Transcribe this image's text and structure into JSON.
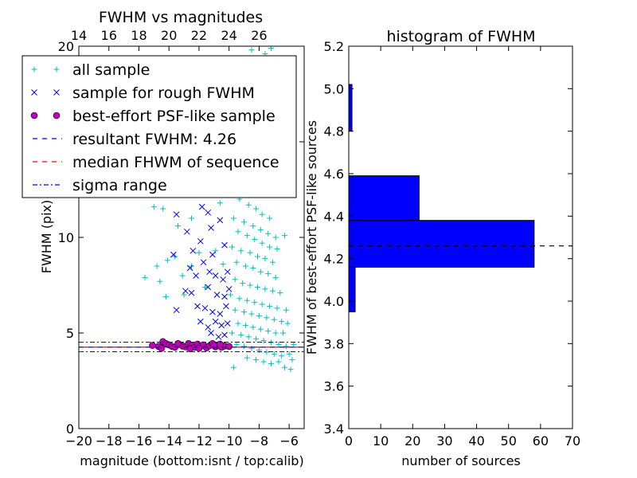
{
  "chart_data": [
    {
      "type": "scatter",
      "title": "FWHM vs magnitudes",
      "xlabel": "magnitude (bottom:isnt / top:calib)",
      "ylabel": "FWHM (pix)",
      "xlim": [
        -20,
        -5
      ],
      "ylim": [
        0,
        20
      ],
      "xticks": [
        -20,
        -18,
        -16,
        -14,
        -12,
        -10,
        -8,
        -6
      ],
      "xtick_labels": [
        "−20",
        "−18",
        "−16",
        "−14",
        "−12",
        "−10",
        "−8",
        "−6"
      ],
      "yticks": [
        0,
        5,
        10,
        15,
        20
      ],
      "ytick_labels": [
        "0",
        "5",
        "10",
        "",
        "20"
      ],
      "top_axis": {
        "ticks": [
          14,
          16,
          18,
          20,
          22,
          24,
          26
        ],
        "tick_labels": [
          "14",
          "16",
          "18",
          "20",
          "22",
          "24",
          "26"
        ],
        "offset_from_bottom": 34
      },
      "grid": false,
      "legend_position": "upper-left",
      "legend": [
        {
          "label": "all sample",
          "marker": "plus",
          "color": "#00bfbf"
        },
        {
          "label": "sample for rough FWHM",
          "marker": "x",
          "color": "#0000ff"
        },
        {
          "label": "best-effort PSF-like sample",
          "marker": "circle",
          "color": "#bf00bf"
        },
        {
          "label": "resultant FWHM: 4.26",
          "marker": "dashed",
          "color": "#0000ff"
        },
        {
          "label": "median FHWM of sequence",
          "marker": "dashed",
          "color": "#ff0000"
        },
        {
          "label": "sigma range",
          "marker": "dashdot",
          "color": "#0000ff"
        }
      ],
      "reference_lines": {
        "resultant_fwhm": 4.26,
        "median_fwhm": 4.26,
        "sigma_low": 4.02,
        "sigma_high": 4.52
      },
      "series": [
        {
          "key": "all",
          "points": [
            [
              -8.5,
              19.8
            ],
            [
              -7.6,
              19.6
            ],
            [
              -7.2,
              19.9
            ],
            [
              -8.9,
              18.5
            ],
            [
              -8.4,
              17.8
            ],
            [
              -7.9,
              16.5
            ],
            [
              -9.5,
              15.2
            ],
            [
              -8.8,
              15.5
            ],
            [
              -8.1,
              14.9
            ],
            [
              -7.7,
              14.2
            ],
            [
              -9.1,
              13.6
            ],
            [
              -8.6,
              13.1
            ],
            [
              -8.0,
              12.8
            ],
            [
              -7.5,
              12.5
            ],
            [
              -10.0,
              12.3
            ],
            [
              -9.3,
              12.0
            ],
            [
              -8.7,
              11.7
            ],
            [
              -8.2,
              11.5
            ],
            [
              -7.8,
              11.2
            ],
            [
              -7.3,
              11.0
            ],
            [
              -15.0,
              11.6
            ],
            [
              -14.4,
              11.5
            ],
            [
              -11.3,
              12.8
            ],
            [
              -11.7,
              12.6
            ],
            [
              -10.6,
              11.8
            ],
            [
              -12.5,
              11.0
            ],
            [
              -13.4,
              10.6
            ],
            [
              -9.7,
              11.0
            ],
            [
              -9.0,
              10.8
            ],
            [
              -8.4,
              10.6
            ],
            [
              -7.9,
              10.4
            ],
            [
              -7.4,
              10.2
            ],
            [
              -6.9,
              10.0
            ],
            [
              -6.3,
              10.1
            ],
            [
              -6.8,
              9.4
            ],
            [
              -9.4,
              10.3
            ],
            [
              -8.8,
              10.1
            ],
            [
              -8.3,
              9.9
            ],
            [
              -7.8,
              9.7
            ],
            [
              -7.3,
              9.5
            ],
            [
              -9.8,
              9.5
            ],
            [
              -9.2,
              9.3
            ],
            [
              -8.6,
              9.2
            ],
            [
              -8.1,
              9.0
            ],
            [
              -7.6,
              8.9
            ],
            [
              -7.1,
              8.7
            ],
            [
              -14.1,
              8.8
            ],
            [
              -14.8,
              8.5
            ],
            [
              -13.6,
              9.0
            ],
            [
              -12.0,
              9.2
            ],
            [
              -10.9,
              9.3
            ],
            [
              -9.5,
              8.7
            ],
            [
              -8.9,
              8.5
            ],
            [
              -8.4,
              8.4
            ],
            [
              -7.9,
              8.2
            ],
            [
              -7.4,
              8.1
            ],
            [
              -6.9,
              7.9
            ],
            [
              -15.6,
              7.9
            ],
            [
              -14.6,
              7.7
            ],
            [
              -13.1,
              8.0
            ],
            [
              -12.5,
              8.5
            ],
            [
              -10.4,
              8.6
            ],
            [
              -9.6,
              7.8
            ],
            [
              -9.1,
              7.6
            ],
            [
              -8.6,
              7.5
            ],
            [
              -8.1,
              7.4
            ],
            [
              -7.6,
              7.3
            ],
            [
              -7.1,
              7.2
            ],
            [
              -6.6,
              7.1
            ],
            [
              -6.2,
              6.2
            ],
            [
              -14.2,
              6.9
            ],
            [
              -13.0,
              7.0
            ],
            [
              -11.6,
              7.4
            ],
            [
              -9.9,
              7.0
            ],
            [
              -9.3,
              6.8
            ],
            [
              -8.8,
              6.7
            ],
            [
              -8.3,
              6.6
            ],
            [
              -7.8,
              6.5
            ],
            [
              -7.3,
              6.4
            ],
            [
              -6.8,
              6.3
            ],
            [
              -9.6,
              6.2
            ],
            [
              -9.0,
              6.1
            ],
            [
              -8.5,
              6.0
            ],
            [
              -8.0,
              5.9
            ],
            [
              -7.5,
              5.8
            ],
            [
              -7.0,
              5.7
            ],
            [
              -6.5,
              5.6
            ],
            [
              -6.1,
              5.5
            ],
            [
              -9.4,
              5.5
            ],
            [
              -8.9,
              5.4
            ],
            [
              -8.4,
              5.3
            ],
            [
              -7.9,
              5.2
            ],
            [
              -7.4,
              5.1
            ],
            [
              -6.9,
              5.0
            ],
            [
              -6.4,
              5.0
            ],
            [
              -9.8,
              5.0
            ],
            [
              -9.2,
              4.9
            ],
            [
              -8.7,
              4.8
            ],
            [
              -8.2,
              4.7
            ],
            [
              -7.7,
              4.6
            ],
            [
              -7.2,
              4.5
            ],
            [
              -6.7,
              4.4
            ],
            [
              -6.2,
              4.3
            ],
            [
              -5.7,
              4.4
            ],
            [
              -9.5,
              4.4
            ],
            [
              -9.0,
              4.3
            ],
            [
              -8.5,
              4.2
            ],
            [
              -8.0,
              4.1
            ],
            [
              -7.5,
              4.0
            ],
            [
              -7.0,
              3.9
            ],
            [
              -6.5,
              3.8
            ],
            [
              -6.0,
              3.9
            ],
            [
              -8.8,
              3.7
            ],
            [
              -8.2,
              3.6
            ],
            [
              -7.7,
              3.5
            ],
            [
              -7.2,
              3.4
            ],
            [
              -6.7,
              3.5
            ],
            [
              -9.7,
              3.2
            ],
            [
              -6.3,
              3.2
            ],
            [
              -5.8,
              3.6
            ],
            [
              -5.9,
              3.1
            ]
          ]
        },
        {
          "key": "rough",
          "points": [
            [
              -11.6,
              13.0
            ],
            [
              -12.3,
              14.2
            ],
            [
              -10.8,
              13.8
            ],
            [
              -11.0,
              12.4
            ],
            [
              -11.8,
              11.6
            ],
            [
              -11.4,
              11.3
            ],
            [
              -13.5,
              11.2
            ],
            [
              -12.8,
              10.3
            ],
            [
              -11.9,
              9.8
            ],
            [
              -11.2,
              10.5
            ],
            [
              -10.6,
              10.9
            ],
            [
              -13.7,
              9.1
            ],
            [
              -12.4,
              9.3
            ],
            [
              -11.1,
              9.1
            ],
            [
              -10.3,
              9.6
            ],
            [
              -12.6,
              8.4
            ],
            [
              -12.2,
              8.0
            ],
            [
              -11.7,
              8.7
            ],
            [
              -11.3,
              8.2
            ],
            [
              -10.9,
              8.0
            ],
            [
              -10.4,
              7.8
            ],
            [
              -10.1,
              8.2
            ],
            [
              -12.9,
              7.2
            ],
            [
              -12.5,
              7.1
            ],
            [
              -11.4,
              7.4
            ],
            [
              -10.8,
              7.0
            ],
            [
              -10.3,
              6.9
            ],
            [
              -10.0,
              7.3
            ],
            [
              -13.5,
              6.2
            ],
            [
              -12.1,
              6.4
            ],
            [
              -11.6,
              6.3
            ],
            [
              -11.1,
              6.1
            ],
            [
              -10.6,
              6.0
            ],
            [
              -10.2,
              6.4
            ],
            [
              -11.9,
              5.6
            ],
            [
              -11.4,
              5.3
            ],
            [
              -10.9,
              5.6
            ],
            [
              -10.5,
              5.4
            ],
            [
              -11.2,
              5.0
            ],
            [
              -10.7,
              4.8
            ],
            [
              -10.3,
              4.9
            ],
            [
              -10.1,
              5.5
            ]
          ]
        },
        {
          "key": "best",
          "points": [
            [
              -15.1,
              4.35
            ],
            [
              -14.7,
              4.3
            ],
            [
              -14.4,
              4.55
            ],
            [
              -14.2,
              4.45
            ],
            [
              -14.0,
              4.38
            ],
            [
              -13.8,
              4.3
            ],
            [
              -13.6,
              4.25
            ],
            [
              -13.3,
              4.4
            ],
            [
              -13.1,
              4.32
            ],
            [
              -12.9,
              4.28
            ],
            [
              -12.7,
              4.45
            ],
            [
              -12.5,
              4.35
            ],
            [
              -12.3,
              4.25
            ],
            [
              -12.1,
              4.42
            ],
            [
              -11.9,
              4.3
            ],
            [
              -11.7,
              4.38
            ],
            [
              -11.5,
              4.22
            ],
            [
              -11.3,
              4.33
            ],
            [
              -11.1,
              4.45
            ],
            [
              -10.9,
              4.28
            ],
            [
              -10.7,
              4.36
            ],
            [
              -10.5,
              4.25
            ],
            [
              -10.3,
              4.32
            ],
            [
              -10.0,
              4.3
            ],
            [
              -14.5,
              4.2
            ],
            [
              -13.4,
              4.45
            ],
            [
              -12.0,
              4.2
            ],
            [
              -11.0,
              4.35
            ],
            [
              -10.6,
              4.42
            ],
            [
              -12.6,
              4.18
            ]
          ]
        }
      ]
    },
    {
      "type": "bar",
      "orientation": "horizontal",
      "title": "histogram of FWHM",
      "xlabel": "number of sources",
      "ylabel": "FWHM of best-effort PSF-like sources",
      "xlim": [
        0,
        70
      ],
      "ylim": [
        3.4,
        5.2
      ],
      "xticks": [
        0,
        10,
        20,
        30,
        40,
        50,
        60,
        70
      ],
      "xtick_labels": [
        "0",
        "10",
        "20",
        "30",
        "40",
        "50",
        "60",
        "70"
      ],
      "yticks": [
        3.4,
        3.6,
        3.8,
        4.0,
        4.2,
        4.4,
        4.6,
        4.8,
        5.0,
        5.2
      ],
      "ytick_labels": [
        "3.4",
        "3.6",
        "3.8",
        "4.0",
        "4.2",
        "4.4",
        "4.6",
        "4.8",
        "5.0",
        "5.2"
      ],
      "bar_color": "#0000ff",
      "bins": [
        {
          "low": 3.95,
          "high": 4.16,
          "count": 2
        },
        {
          "low": 4.16,
          "high": 4.38,
          "count": 58
        },
        {
          "low": 4.38,
          "high": 4.59,
          "count": 22
        },
        {
          "low": 4.8,
          "high": 5.02,
          "count": 1
        }
      ],
      "reference_line": 4.26
    }
  ]
}
